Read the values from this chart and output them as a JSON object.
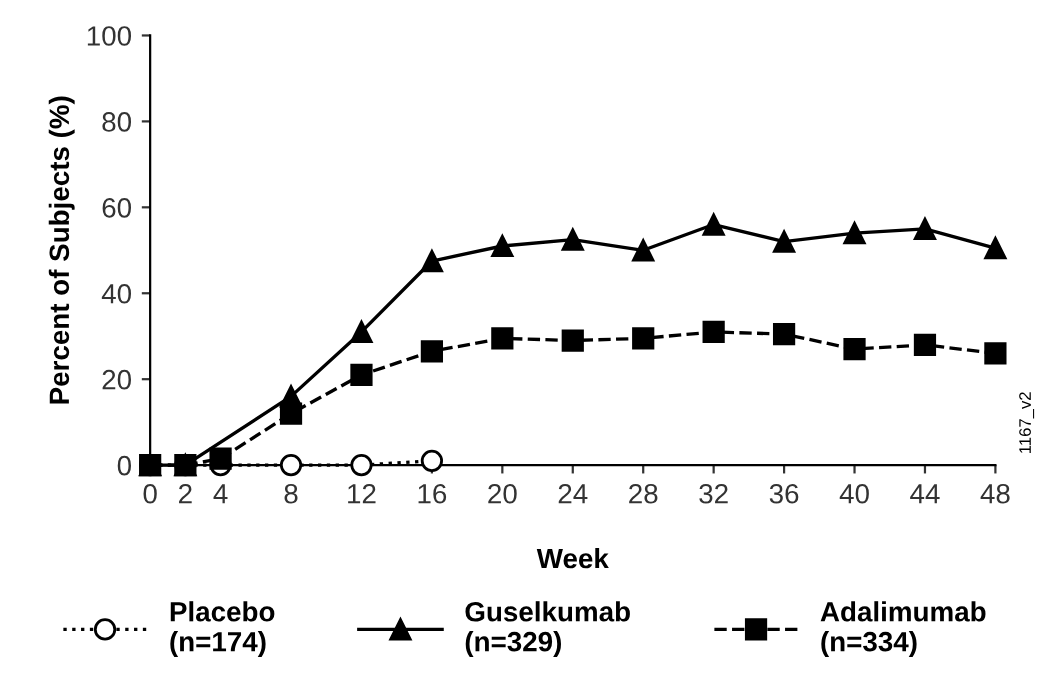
{
  "chart_data": {
    "type": "line",
    "xlabel": "Week",
    "ylabel": "Percent of Subjects (%)",
    "xlim": [
      0,
      48
    ],
    "xticks": [
      0,
      2,
      4,
      8,
      12,
      16,
      20,
      24,
      28,
      32,
      36,
      40,
      44,
      48
    ],
    "ylim": [
      0,
      100
    ],
    "yticks": [
      0,
      20,
      40,
      60,
      80,
      100
    ],
    "grid": false,
    "legend": "bottom",
    "annotations": [
      "1167_v2"
    ],
    "series": [
      {
        "name": "Placebo\n(n=174)",
        "color": "#000000",
        "marker": "circle",
        "line_style": "dotted",
        "x": [
          0,
          2,
          4,
          8,
          12,
          16
        ],
        "values": [
          0,
          0,
          0,
          0,
          0,
          1
        ]
      },
      {
        "name": "Guselkumab\n(n=329)",
        "color": "#000000",
        "marker": "triangle",
        "line_style": "solid",
        "x": [
          0,
          2,
          4,
          8,
          12,
          16,
          20,
          24,
          28,
          32,
          36,
          40,
          44,
          48
        ],
        "values": [
          0,
          0,
          null,
          16,
          31,
          47.5,
          51,
          52.5,
          50,
          56,
          52,
          54,
          55,
          50.5
        ]
      },
      {
        "name": "Adalimumab\n(n=334)",
        "color": "#000000",
        "marker": "square",
        "line_style": "dashed",
        "x": [
          0,
          2,
          4,
          8,
          12,
          16,
          20,
          24,
          28,
          32,
          36,
          40,
          44,
          48
        ],
        "values": [
          0,
          0,
          1.5,
          12,
          21,
          26.5,
          29.5,
          29,
          29.5,
          31,
          30.5,
          27,
          28,
          26
        ]
      }
    ]
  }
}
